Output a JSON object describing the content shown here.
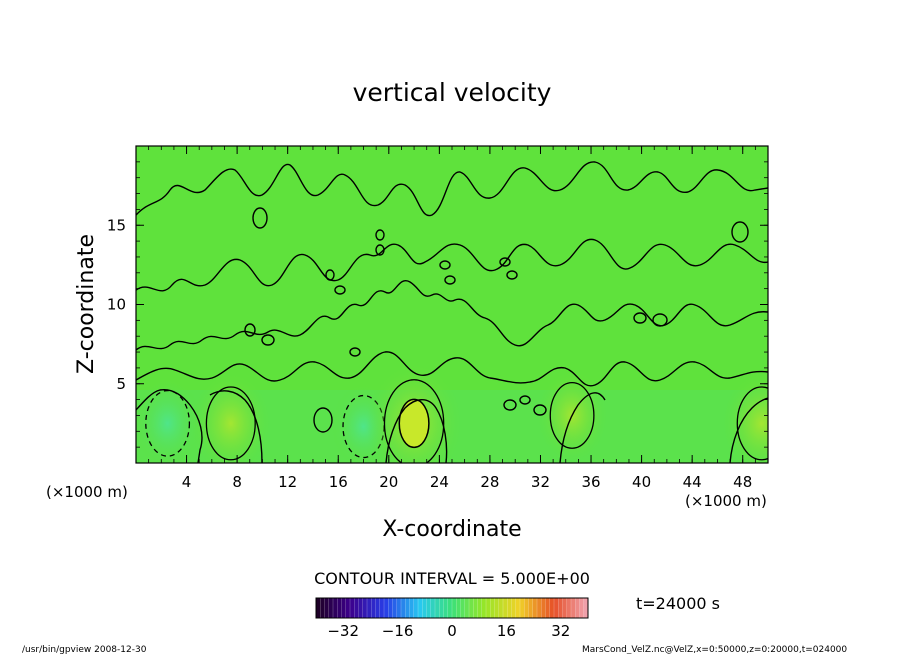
{
  "chart_data": {
    "type": "contour",
    "title": "vertical velocity",
    "xlabel": "X-coordinate",
    "ylabel": "Z-coordinate",
    "x_unit_left": "(×1000 m)",
    "x_unit_right": "(×1000 m)",
    "xlim": [
      0,
      50
    ],
    "ylim": [
      0,
      20
    ],
    "xticks": [
      4,
      8,
      12,
      16,
      20,
      24,
      28,
      32,
      36,
      40,
      44,
      48
    ],
    "yticks": [
      5,
      10,
      15
    ],
    "contour_interval_text": "CONTOUR INTERVAL = 5.000E+00",
    "time_text": "t=24000 s",
    "colorbar": {
      "min": -40,
      "max": 40,
      "ticks": [
        -32,
        -16,
        0,
        16,
        32
      ],
      "tick_labels": [
        "−32",
        "−16",
        "0",
        "16",
        "32"
      ]
    },
    "cells": [
      {
        "x": 2.5,
        "z": 2.5,
        "value": -6,
        "contour": "dashed"
      },
      {
        "x": 7.5,
        "z": 2.5,
        "value": 8,
        "contour": "solid"
      },
      {
        "x": 18.0,
        "z": 2.3,
        "value": -5,
        "contour": "dashed"
      },
      {
        "x": 22.0,
        "z": 2.5,
        "value": 12,
        "contour": "solid"
      },
      {
        "x": 34.5,
        "z": 3.0,
        "value": 6,
        "contour": "solid"
      },
      {
        "x": 49.5,
        "z": 2.5,
        "value": 8,
        "contour": "solid"
      }
    ]
  },
  "footer": {
    "left": "/usr/bin/gpview   2008-12-30",
    "right": "MarsCond_VelZ.nc@VelZ,x=0:50000,z=0:20000,t=024000"
  }
}
